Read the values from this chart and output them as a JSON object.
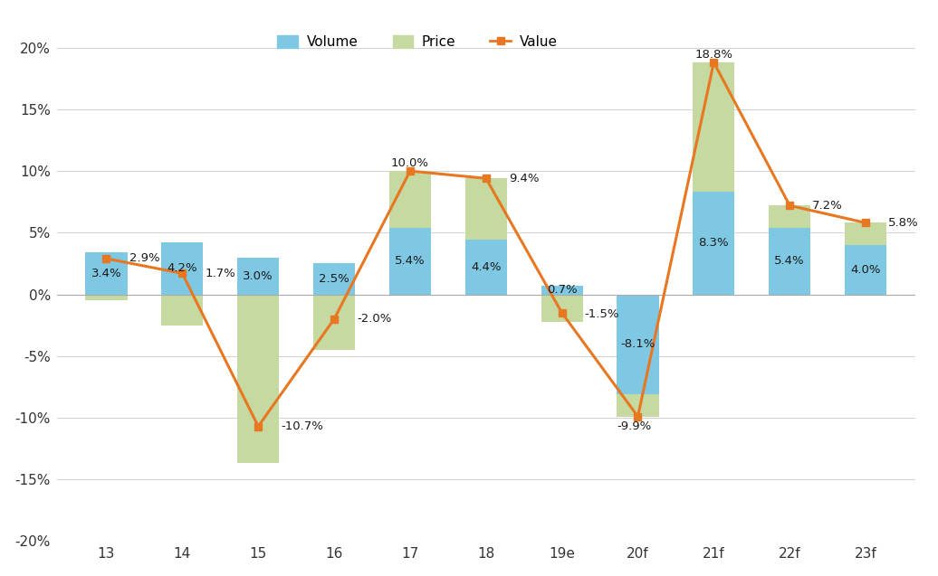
{
  "categories": [
    "13",
    "14",
    "15",
    "16",
    "17",
    "18",
    "19e",
    "20f",
    "21f",
    "22f",
    "23f"
  ],
  "volume": [
    3.4,
    4.2,
    3.0,
    2.5,
    5.4,
    4.4,
    0.7,
    -8.1,
    8.3,
    5.4,
    4.0
  ],
  "price": [
    -0.5,
    -2.5,
    -13.7,
    -4.5,
    4.6,
    5.0,
    -2.2,
    -1.8,
    10.5,
    1.8,
    1.8
  ],
  "value": [
    2.9,
    1.7,
    -10.7,
    -2.0,
    10.0,
    9.4,
    -1.5,
    -9.9,
    18.8,
    7.2,
    5.8
  ],
  "volume_color": "#7EC8E3",
  "price_color": "#C5D9A0",
  "value_color": "#E87722",
  "volume_label": "Volume",
  "price_label": "Price",
  "value_label": "Value",
  "ylim": [
    -20,
    20
  ],
  "yticks": [
    -20,
    -15,
    -10,
    -5,
    0,
    5,
    10,
    15,
    20
  ],
  "ytick_labels": [
    "-20%",
    "-15%",
    "-10%",
    "-5%",
    "0%",
    "5%",
    "10%",
    "15%",
    "20%"
  ],
  "bar_width": 0.55,
  "background_color": "#ffffff",
  "grid_color": "#d0d0d0"
}
